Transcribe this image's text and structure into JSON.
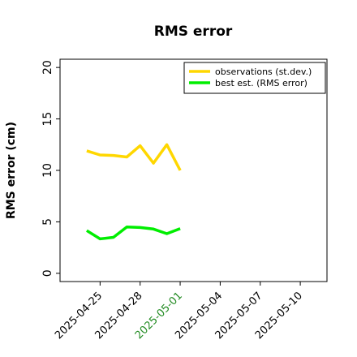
{
  "chart_data": {
    "type": "line",
    "title": "RMS error",
    "ylabel": "RMS error (cm)",
    "xlabel": "",
    "ylim": [
      -0.8,
      20.8
    ],
    "xlim": [
      "2025-04-22",
      "2025-05-12"
    ],
    "yticks": [
      0,
      5,
      10,
      15,
      20
    ],
    "xticks": [
      "2025-04-25",
      "2025-04-28",
      "2025-05-01",
      "2025-05-04",
      "2025-05-07",
      "2025-05-10"
    ],
    "highlight_tick": "2025-05-01",
    "highlight_color": "#228b22",
    "grid": false,
    "legend_position": "top-right",
    "series": [
      {
        "name": "observations (st.dev.)",
        "color": "#ffd700",
        "x": [
          "2025-04-24",
          "2025-04-25",
          "2025-04-26",
          "2025-04-27",
          "2025-04-28",
          "2025-04-29",
          "2025-04-30",
          "2025-05-01"
        ],
        "values": [
          11.9,
          11.5,
          11.45,
          11.3,
          12.4,
          10.7,
          12.5,
          10.0
        ]
      },
      {
        "name": "best est. (RMS error)",
        "color": "#00ee00",
        "x": [
          "2025-04-24",
          "2025-04-25",
          "2025-04-26",
          "2025-04-27",
          "2025-04-28",
          "2025-04-29",
          "2025-04-30",
          "2025-05-01"
        ],
        "values": [
          4.15,
          3.35,
          3.5,
          4.5,
          4.45,
          4.3,
          3.85,
          4.35
        ]
      }
    ]
  }
}
